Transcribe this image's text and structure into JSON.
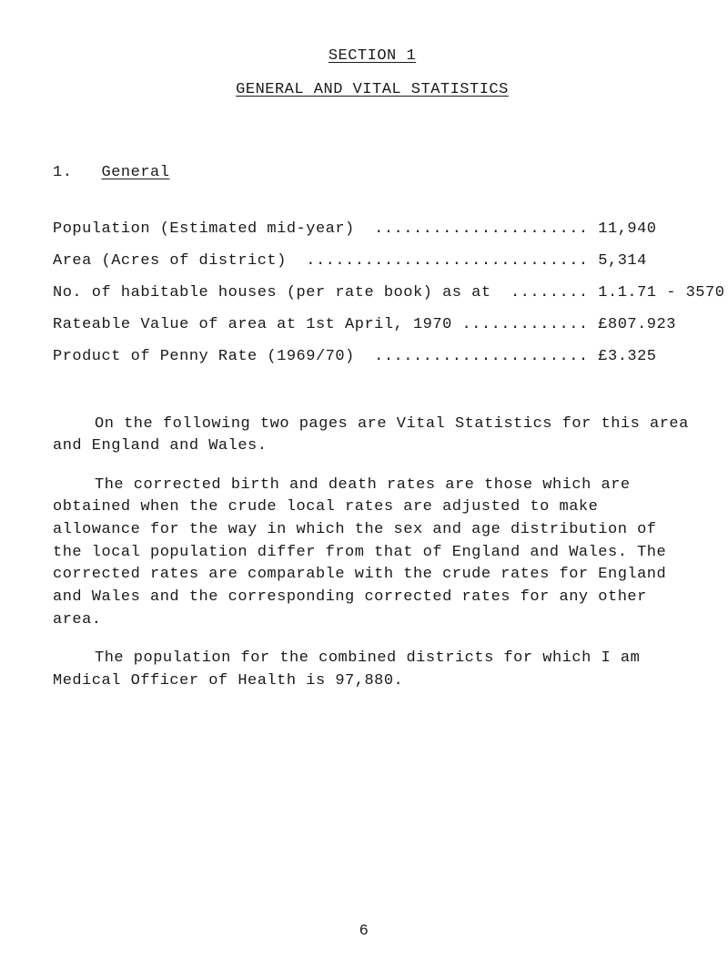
{
  "header": {
    "section_label": "SECTION  1",
    "subtitle": "GENERAL  AND  VITAL  STATISTICS"
  },
  "general_heading": {
    "number": "1.",
    "word": "General"
  },
  "data_lines": {
    "l1": "Population (Estimated mid-year)  ...................... 11,940",
    "l2": "Area (Acres of district)  ............................. 5,314",
    "l3": "No. of habitable houses (per rate book) as at  ........ 1.1.71 - 3570",
    "l4": "Rateable Value of area at 1st April, 1970 ............. £807.923",
    "l5": "Product of Penny Rate (1969/70)  ...................... £3.325"
  },
  "paragraphs": {
    "p1": "On the following two pages are Vital Statistics for this area and England and Wales.",
    "p2": "The corrected birth and death rates are those which are obtained when the crude local rates are adjusted to make allowance for the way in which the sex and age distribution of the local population differ from that of England and Wales.  The corrected rates are comparable with the crude rates for England and Wales and the corresponding corrected rates for any other area.",
    "p3": "The population for the combined districts for which I am Medical Officer of Health is 97,880."
  },
  "page_number": "6"
}
